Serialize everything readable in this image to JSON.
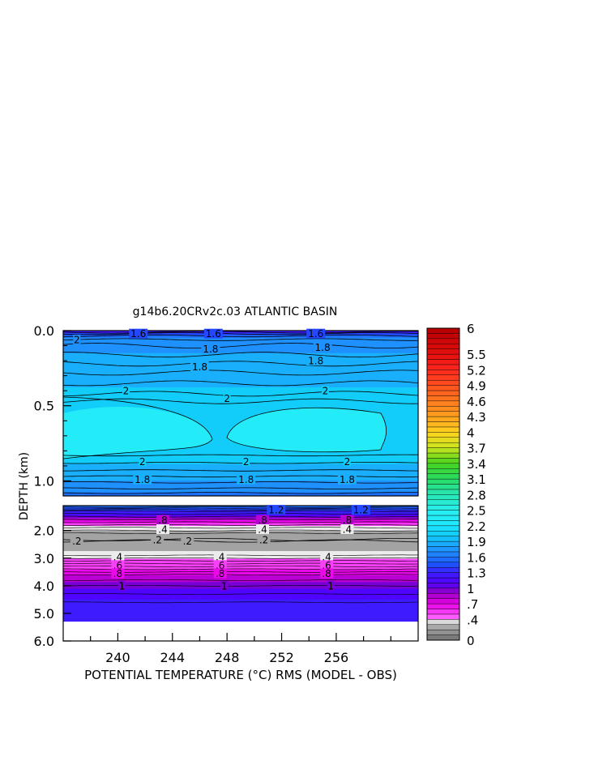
{
  "chart_data": {
    "type": "heatmap",
    "title": "g14b6.20CRv2c.03 ATLANTIC BASIN",
    "xlabel": "POTENTIAL TEMPERATURE (°C) RMS (MODEL - OBS)",
    "ylabel": "DEPTH (km)",
    "x_ticks": [
      240,
      244,
      248,
      252,
      256
    ],
    "x_tick_labels": [
      "240",
      "244",
      "248",
      "252",
      "256"
    ],
    "xlim": [
      236,
      262
    ],
    "upper_panel": {
      "ylim": [
        0.0,
        1.1
      ],
      "y_tick_labels": [
        {
          "v": 0.0,
          "t": "0.0"
        },
        {
          "v": 0.5,
          "t": "0.5"
        },
        {
          "v": 1.0,
          "t": "1.0"
        }
      ]
    },
    "lower_panel": {
      "ylim": [
        1.1,
        6.0
      ],
      "y_tick_labels": [
        {
          "v": 2.0,
          "t": "2.0"
        },
        {
          "v": 3.0,
          "t": "3.0"
        },
        {
          "v": 4.0,
          "t": "4.0"
        },
        {
          "v": 5.0,
          "t": "5.0"
        },
        {
          "v": 6.0,
          "t": "6.0"
        }
      ]
    },
    "depth_profile": [
      {
        "depth": 0.0,
        "value": 1.2
      },
      {
        "depth": 0.05,
        "value": 1.7
      },
      {
        "depth": 0.15,
        "value": 1.8
      },
      {
        "depth": 0.3,
        "value": 1.9
      },
      {
        "depth": 0.45,
        "value": 2.0
      },
      {
        "depth": 0.6,
        "value": 2.1
      },
      {
        "depth": 0.85,
        "value": 2.0
      },
      {
        "depth": 1.0,
        "value": 1.8
      },
      {
        "depth": 1.1,
        "value": 1.6
      },
      {
        "depth": 1.4,
        "value": 1.2
      },
      {
        "depth": 1.6,
        "value": 0.8
      },
      {
        "depth": 1.8,
        "value": 0.5
      },
      {
        "depth": 2.1,
        "value": 0.2
      },
      {
        "depth": 2.6,
        "value": 0.2
      },
      {
        "depth": 2.9,
        "value": 0.4
      },
      {
        "depth": 3.4,
        "value": 0.6
      },
      {
        "depth": 4.0,
        "value": 1.0
      },
      {
        "depth": 4.5,
        "value": 1.2
      },
      {
        "depth": 5.3,
        "value": 1.2
      }
    ],
    "missing_below_depth": 5.3,
    "colorbar": {
      "min": 0,
      "max": 6,
      "tick_labels": [
        "6",
        "5.5",
        "5.2",
        "4.9",
        "4.6",
        "4.3",
        "4",
        "3.7",
        "3.4",
        "3.1",
        "2.8",
        "2.5",
        "2.2",
        "1.9",
        "1.6",
        "1.3",
        "1",
        ".7",
        ".4",
        "0"
      ]
    },
    "contour_labels": [
      {
        "text": "1.8",
        "x": 246.8,
        "y": 0.12
      },
      {
        "text": "1.8",
        "x": 255.0,
        "y": 0.11
      },
      {
        "text": "1.8",
        "x": 246.0,
        "y": 0.24
      },
      {
        "text": "1.8",
        "x": 254.5,
        "y": 0.2
      },
      {
        "text": "2",
        "x": 237.0,
        "y": 0.06
      },
      {
        "text": "2",
        "x": 240.6,
        "y": 0.4
      },
      {
        "text": "2",
        "x": 248.0,
        "y": 0.45
      },
      {
        "text": "2",
        "x": 255.2,
        "y": 0.4
      },
      {
        "text": "2",
        "x": 241.8,
        "y": 0.87
      },
      {
        "text": "2",
        "x": 249.4,
        "y": 0.87
      },
      {
        "text": "2",
        "x": 256.8,
        "y": 0.87
      },
      {
        "text": "1.8",
        "x": 241.8,
        "y": 0.99
      },
      {
        "text": "1.8",
        "x": 249.4,
        "y": 0.99
      },
      {
        "text": "1.8",
        "x": 256.8,
        "y": 0.99
      },
      {
        "text": "1.6",
        "x": 241.5,
        "y": 0.02
      },
      {
        "text": "1.6",
        "x": 247.0,
        "y": 0.02
      },
      {
        "text": "1.6",
        "x": 254.5,
        "y": 0.02
      },
      {
        "text": "1.2",
        "x": 251.6,
        "y": 1.25
      },
      {
        "text": "1.2",
        "x": 257.8,
        "y": 1.25
      },
      {
        "text": ".8",
        "x": 243.3,
        "y": 1.62
      },
      {
        "text": ".8",
        "x": 250.6,
        "y": 1.62
      },
      {
        "text": ".8",
        "x": 256.8,
        "y": 1.62
      },
      {
        "text": ".4",
        "x": 243.3,
        "y": 1.95
      },
      {
        "text": ".4",
        "x": 250.6,
        "y": 1.95
      },
      {
        "text": ".4",
        "x": 256.8,
        "y": 1.95
      },
      {
        "text": ".2",
        "x": 237.0,
        "y": 2.38
      },
      {
        "text": ".2",
        "x": 242.9,
        "y": 2.33
      },
      {
        "text": ".2",
        "x": 245.1,
        "y": 2.38
      },
      {
        "text": ".2",
        "x": 250.7,
        "y": 2.33
      },
      {
        "text": ".4",
        "x": 240.0,
        "y": 2.95
      },
      {
        "text": ".4",
        "x": 247.5,
        "y": 2.95
      },
      {
        "text": ".4",
        "x": 255.3,
        "y": 2.95
      },
      {
        "text": ".6",
        "x": 240.0,
        "y": 3.25
      },
      {
        "text": ".6",
        "x": 247.5,
        "y": 3.25
      },
      {
        "text": ".6",
        "x": 255.3,
        "y": 3.25
      },
      {
        "text": ".8",
        "x": 240.0,
        "y": 3.55
      },
      {
        "text": ".8",
        "x": 247.5,
        "y": 3.55
      },
      {
        "text": ".8",
        "x": 255.3,
        "y": 3.55
      },
      {
        "text": "1",
        "x": 240.3,
        "y": 4.0
      },
      {
        "text": "1",
        "x": 247.8,
        "y": 4.0
      },
      {
        "text": "1",
        "x": 255.6,
        "y": 4.0
      }
    ]
  }
}
